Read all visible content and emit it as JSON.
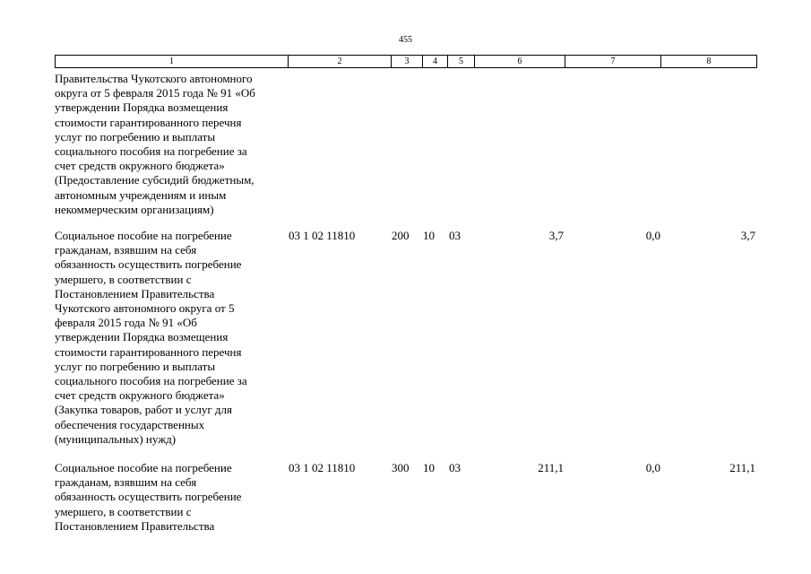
{
  "page_number": "455",
  "header_columns": [
    "1",
    "2",
    "3",
    "4",
    "5",
    "6",
    "7",
    "8"
  ],
  "rows": [
    {
      "text": "Правительства Чукотского автономного\nокруга от 5 февраля 2015 года № 91 «Об\nутверждении Порядка возмещения\nстоимости гарантированного перечня\nуслуг по погребению и выплаты\nсоциального пособия на погребение за\nсчет средств окружного бюджета»\n(Предоставление субсидий бюджетным,\nавтономным учреждениям и иным\nнекоммерческим организациям)"
    },
    {
      "text": "Социальное пособие на погребение\nгражданам, взявшим на себя\nобязанность осуществить погребение\nумершего, в соответствии с\nПостановлением Правительства\nЧукотского автономного округа от 5\nфевраля 2015 года № 91 «Об\nутверждении Порядка возмещения\nстоимости гарантированного перечня\nуслуг по погребению и выплаты\nсоциального пособия на погребение за\nсчет средств окружного бюджета»\n(Закупка товаров, работ и услуг для\nобеспечения государственных\n(муниципальных) нужд)",
      "code": "03 1 02 11810",
      "vr": "200",
      "rz": "10",
      "pr": "03",
      "sum1": "3,7",
      "sum2": "0,0",
      "sum3": "3,7"
    },
    {
      "text": "Социальное пособие на погребение\nгражданам, взявшим на себя\nобязанность осуществить погребение\nумершего, в соответствии с\nПостановлением Правительства",
      "code": "03 1 02 11810",
      "vr": "300",
      "rz": "10",
      "pr": "03",
      "sum1": "211,1",
      "sum2": "0,0",
      "sum3": "211,1"
    }
  ]
}
